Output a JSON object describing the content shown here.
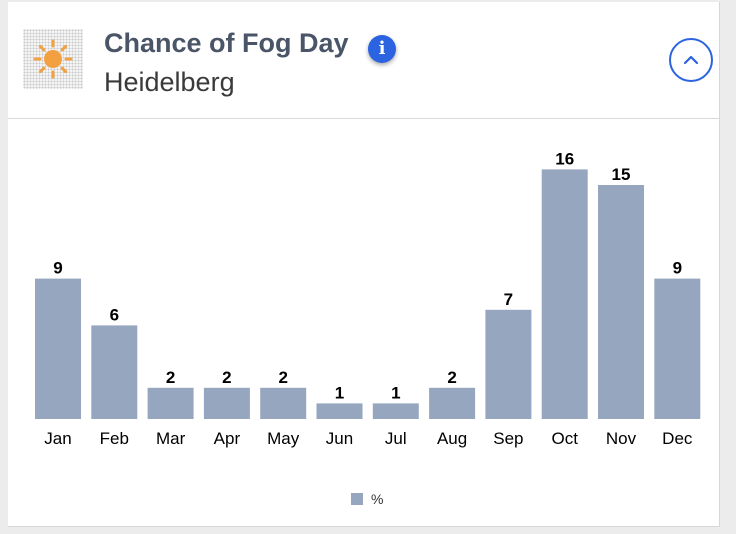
{
  "header": {
    "title": "Chance of Fog Day",
    "location": "Heidelberg",
    "info_icon": "info-icon",
    "collapse_icon": "chevron-up-icon",
    "weather_icon": "sun-icon"
  },
  "colors": {
    "bar": "#97a6bf",
    "accent": "#2b63e0",
    "title": "#4a5568",
    "sun": "#f3a140"
  },
  "chart_data": {
    "type": "bar",
    "title": "Chance of Fog Day",
    "categories": [
      "Jan",
      "Feb",
      "Mar",
      "Apr",
      "May",
      "Jun",
      "Jul",
      "Aug",
      "Sep",
      "Oct",
      "Nov",
      "Dec"
    ],
    "series": [
      {
        "name": "%",
        "values": [
          9,
          6,
          2,
          2,
          2,
          1,
          1,
          2,
          7,
          16,
          15,
          9
        ]
      }
    ],
    "ylim": [
      0,
      16
    ],
    "grid": false,
    "legend": "bottom-center"
  }
}
